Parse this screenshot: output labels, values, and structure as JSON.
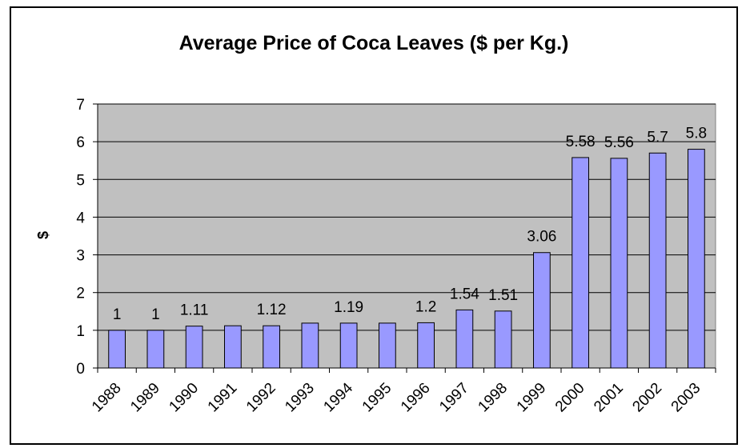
{
  "chart_data": {
    "type": "bar",
    "title": "Average Price of Coca Leaves ($ per Kg.)",
    "xlabel": "",
    "ylabel": "$",
    "ylim": [
      0,
      7
    ],
    "yticks": [
      0,
      1,
      2,
      3,
      4,
      5,
      6,
      7
    ],
    "grid": true,
    "legend": "none",
    "categories": [
      "1988",
      "1989",
      "1990",
      "1991",
      "1992",
      "1993",
      "1994",
      "1995",
      "1996",
      "1997",
      "1998",
      "1999",
      "2000",
      "2001",
      "2002",
      "2003"
    ],
    "values": [
      1,
      1,
      1.11,
      1.12,
      1.12,
      1.19,
      1.19,
      1.19,
      1.2,
      1.54,
      1.51,
      3.06,
      5.58,
      5.56,
      5.7,
      5.8
    ],
    "data_labels": [
      "1",
      "1",
      "1.11",
      "",
      "1.12",
      "",
      "1.19",
      "",
      "1.2",
      "1.54",
      "1.51",
      "3.06",
      "5.58",
      "5.56",
      "5.7",
      "5.8"
    ],
    "colors": {
      "plot_background": "#c0c0c0",
      "bar_fill": "#9999ff",
      "bar_stroke": "#000000",
      "gridline": "#000000"
    }
  }
}
